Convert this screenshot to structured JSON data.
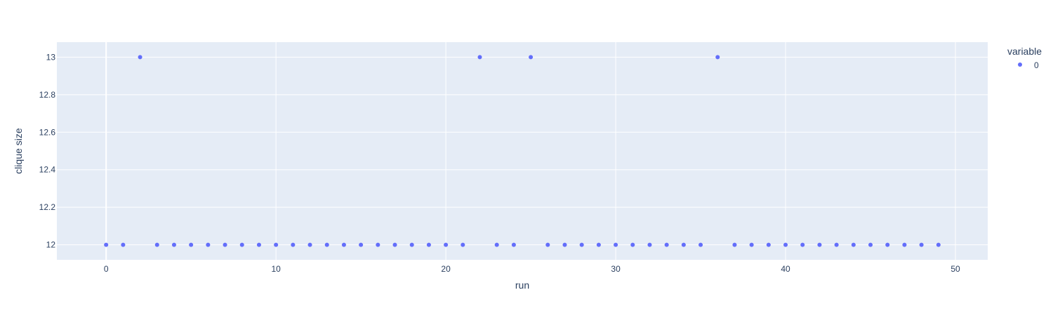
{
  "chart_data": {
    "type": "scatter",
    "xlabel": "run",
    "ylabel": "clique size",
    "xlim": [
      -2.9,
      51.9
    ],
    "ylim": [
      11.92,
      13.08
    ],
    "x_ticks": [
      0,
      10,
      20,
      30,
      40,
      50
    ],
    "y_ticks": [
      12,
      12.2,
      12.4,
      12.6,
      12.8,
      13
    ],
    "y_tick_labels": [
      "12",
      "12.2",
      "12.4",
      "12.6",
      "12.8",
      "13"
    ],
    "grid": true,
    "legend_position": "top-right",
    "legend_title": "variable",
    "series": [
      {
        "name": "0",
        "color": "#636efa",
        "x": [
          0,
          1,
          2,
          3,
          4,
          5,
          6,
          7,
          8,
          9,
          10,
          11,
          12,
          13,
          14,
          15,
          16,
          17,
          18,
          19,
          20,
          21,
          22,
          23,
          24,
          25,
          26,
          27,
          28,
          29,
          30,
          31,
          32,
          33,
          34,
          35,
          36,
          37,
          38,
          39,
          40,
          41,
          42,
          43,
          44,
          45,
          46,
          47,
          48,
          49
        ],
        "y": [
          12,
          12,
          13,
          12,
          12,
          12,
          12,
          12,
          12,
          12,
          12,
          12,
          12,
          12,
          12,
          12,
          12,
          12,
          12,
          12,
          12,
          12,
          13,
          12,
          12,
          13,
          12,
          12,
          12,
          12,
          12,
          12,
          12,
          12,
          12,
          12,
          13,
          12,
          12,
          12,
          12,
          12,
          12,
          12,
          12,
          12,
          12,
          12,
          12,
          12
        ]
      }
    ]
  },
  "colors": {
    "plot_bg": "#e5ecf6",
    "grid": "#ffffff",
    "text": "#2a3f5f"
  }
}
